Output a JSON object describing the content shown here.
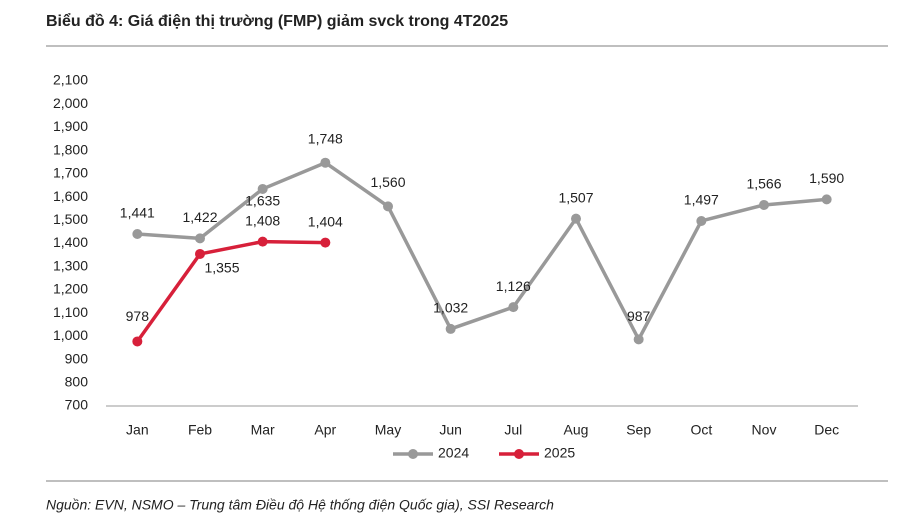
{
  "chart_data": {
    "type": "line",
    "title": "Biểu đồ 4: Giá điện thị trường (FMP) giảm svck trong 4T2025",
    "source": "Nguồn: EVN, NSMO – Trung tâm Điều độ Hệ thống điện Quốc gia), SSI Research",
    "categories": [
      "Jan",
      "Feb",
      "Mar",
      "Apr",
      "May",
      "Jun",
      "Jul",
      "Aug",
      "Sep",
      "Oct",
      "Nov",
      "Dec"
    ],
    "series": [
      {
        "name": "2024",
        "color": "#999999",
        "values": [
          1441,
          1422,
          1635,
          1748,
          1560,
          1032,
          1126,
          1507,
          987,
          1497,
          1566,
          1590
        ],
        "value_labels": [
          "1,441",
          "1,422",
          "1,635",
          "1,748",
          "1,560",
          "1,032",
          "1,126",
          "1,507",
          "987",
          "1,497",
          "1,566",
          "1,590"
        ]
      },
      {
        "name": "2025",
        "color": "#d7203a",
        "values": [
          978,
          1355,
          1408,
          1404,
          null,
          null,
          null,
          null,
          null,
          null,
          null,
          null
        ],
        "value_labels": [
          "978",
          "1,355",
          "1,408",
          "1,404",
          null,
          null,
          null,
          null,
          null,
          null,
          null,
          null
        ]
      }
    ],
    "ylim": [
      700,
      2100
    ],
    "yticks": [
      700,
      800,
      900,
      {
        "value": 1000,
        "label": "1,000"
      },
      {
        "value": 1100,
        "label": "1,100"
      },
      {
        "value": 1200,
        "label": "1,200"
      },
      {
        "value": 1300,
        "label": "1,300"
      },
      {
        "value": 1400,
        "label": "1,400"
      },
      {
        "value": 1500,
        "label": "1,500"
      },
      {
        "value": 1600,
        "label": "1,600"
      },
      {
        "value": 1700,
        "label": "1,700"
      },
      {
        "value": 1800,
        "label": "1,800"
      },
      {
        "value": 1900,
        "label": "1,900"
      },
      {
        "value": 2000,
        "label": "2,000"
      },
      {
        "value": 2100,
        "label": "2,100"
      }
    ],
    "grid": false,
    "legend": "bottom"
  }
}
